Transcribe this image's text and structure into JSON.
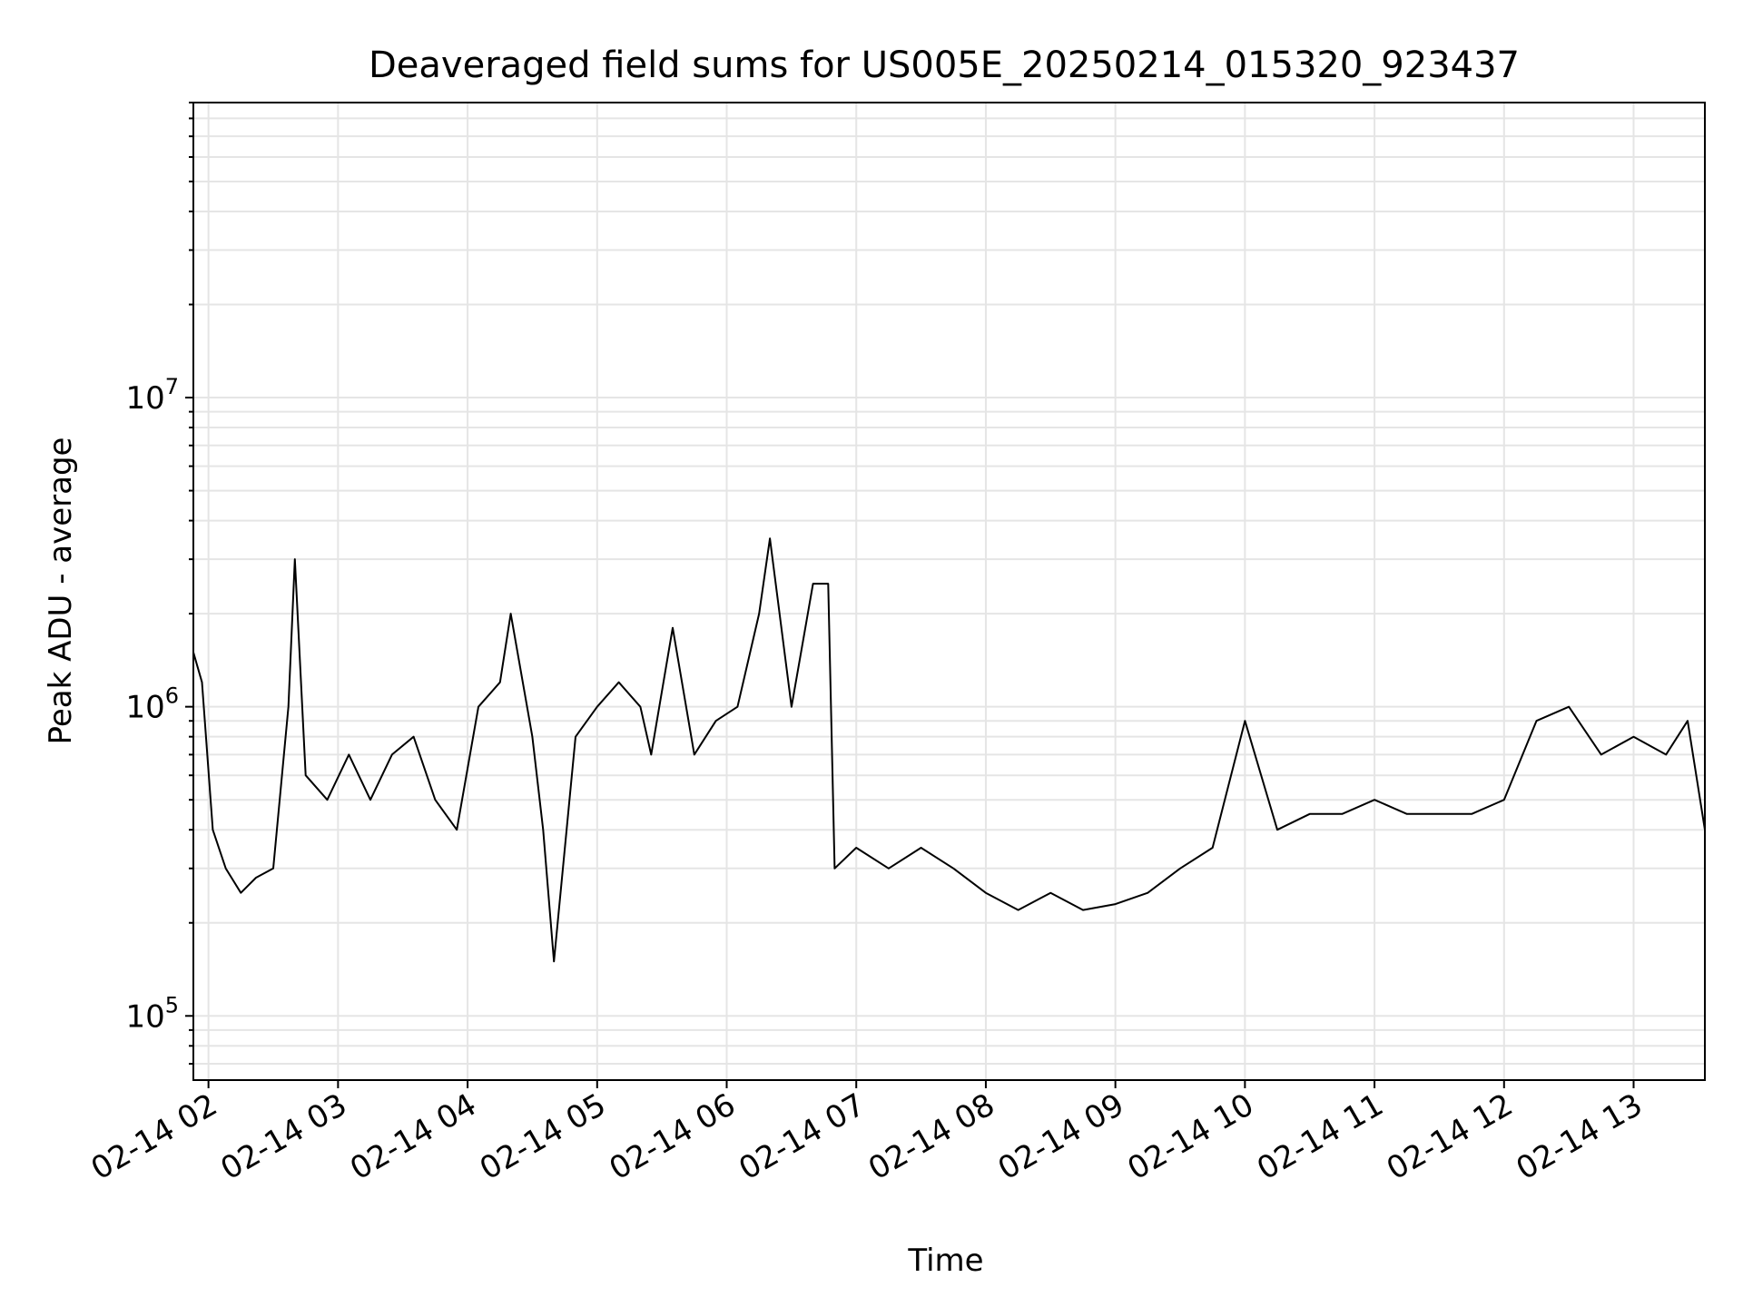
{
  "chart_data": {
    "type": "line",
    "title": "Deaveraged field sums for US005E_20250214_015320_923437",
    "xlabel": "Time",
    "ylabel": "Peak ADU - average",
    "xlim": [
      "2025-02-14T01:53",
      "2025-02-14T13:33"
    ],
    "ylim": [
      62000,
      90000000
    ],
    "yscale": "log",
    "grid": true,
    "x_tick_labels": [
      "02-14 02",
      "02-14 03",
      "02-14 04",
      "02-14 05",
      "02-14 06",
      "02-14 07",
      "02-14 08",
      "02-14 09",
      "02-14 10",
      "02-14 11",
      "02-14 12",
      "02-14 13"
    ],
    "x_ticks": [
      "2025-02-14T02:00",
      "2025-02-14T03:00",
      "2025-02-14T04:00",
      "2025-02-14T05:00",
      "2025-02-14T06:00",
      "2025-02-14T07:00",
      "2025-02-14T08:00",
      "2025-02-14T09:00",
      "2025-02-14T10:00",
      "2025-02-14T11:00",
      "2025-02-14T12:00",
      "2025-02-14T13:00"
    ],
    "y_ticks": [
      100000,
      1000000,
      10000000
    ],
    "y_tick_labels": [
      {
        "base": "10",
        "exp": "5"
      },
      {
        "base": "10",
        "exp": "6"
      },
      {
        "base": "10",
        "exp": "7"
      }
    ],
    "line_color": "#000000",
    "series": [
      {
        "x": [
          "2025-02-14T01:53",
          "2025-02-14T01:57",
          "2025-02-14T02:02",
          "2025-02-14T02:08",
          "2025-02-14T02:15",
          "2025-02-14T02:22",
          "2025-02-14T02:30",
          "2025-02-14T02:37",
          "2025-02-14T02:40",
          "2025-02-14T02:45",
          "2025-02-14T02:55",
          "2025-02-14T03:05",
          "2025-02-14T03:15",
          "2025-02-14T03:25",
          "2025-02-14T03:35",
          "2025-02-14T03:45",
          "2025-02-14T03:55",
          "2025-02-14T04:05",
          "2025-02-14T04:15",
          "2025-02-14T04:20",
          "2025-02-14T04:30",
          "2025-02-14T04:35",
          "2025-02-14T04:40",
          "2025-02-14T04:50",
          "2025-02-14T05:00",
          "2025-02-14T05:10",
          "2025-02-14T05:20",
          "2025-02-14T05:25",
          "2025-02-14T05:35",
          "2025-02-14T05:45",
          "2025-02-14T05:55",
          "2025-02-14T06:05",
          "2025-02-14T06:15",
          "2025-02-14T06:20",
          "2025-02-14T06:30",
          "2025-02-14T06:40",
          "2025-02-14T06:47",
          "2025-02-14T06:50",
          "2025-02-14T07:00",
          "2025-02-14T07:15",
          "2025-02-14T07:30",
          "2025-02-14T07:45",
          "2025-02-14T08:00",
          "2025-02-14T08:15",
          "2025-02-14T08:30",
          "2025-02-14T08:45",
          "2025-02-14T09:00",
          "2025-02-14T09:15",
          "2025-02-14T09:30",
          "2025-02-14T09:45",
          "2025-02-14T10:00",
          "2025-02-14T10:15",
          "2025-02-14T10:30",
          "2025-02-14T10:45",
          "2025-02-14T11:00",
          "2025-02-14T11:15",
          "2025-02-14T11:30",
          "2025-02-14T11:45",
          "2025-02-14T12:00",
          "2025-02-14T12:15",
          "2025-02-14T12:30",
          "2025-02-14T12:45",
          "2025-02-14T13:00",
          "2025-02-14T13:15",
          "2025-02-14T13:25",
          "2025-02-14T13:33"
        ],
        "y": [
          1500000,
          1200000,
          400000,
          300000,
          250000,
          280000,
          300000,
          1000000,
          3000000,
          600000,
          500000,
          700000,
          500000,
          700000,
          800000,
          500000,
          400000,
          1000000,
          1200000,
          2000000,
          800000,
          400000,
          150000,
          800000,
          1000000,
          1200000,
          1000000,
          700000,
          1800000,
          700000,
          900000,
          1000000,
          2000000,
          3500000,
          1000000,
          2500000,
          2500000,
          300000,
          350000,
          300000,
          350000,
          300000,
          250000,
          220000,
          250000,
          220000,
          230000,
          250000,
          300000,
          350000,
          900000,
          400000,
          450000,
          450000,
          500000,
          450000,
          450000,
          450000,
          500000,
          900000,
          1000000,
          700000,
          800000,
          700000,
          900000,
          400000
        ]
      }
    ]
  }
}
